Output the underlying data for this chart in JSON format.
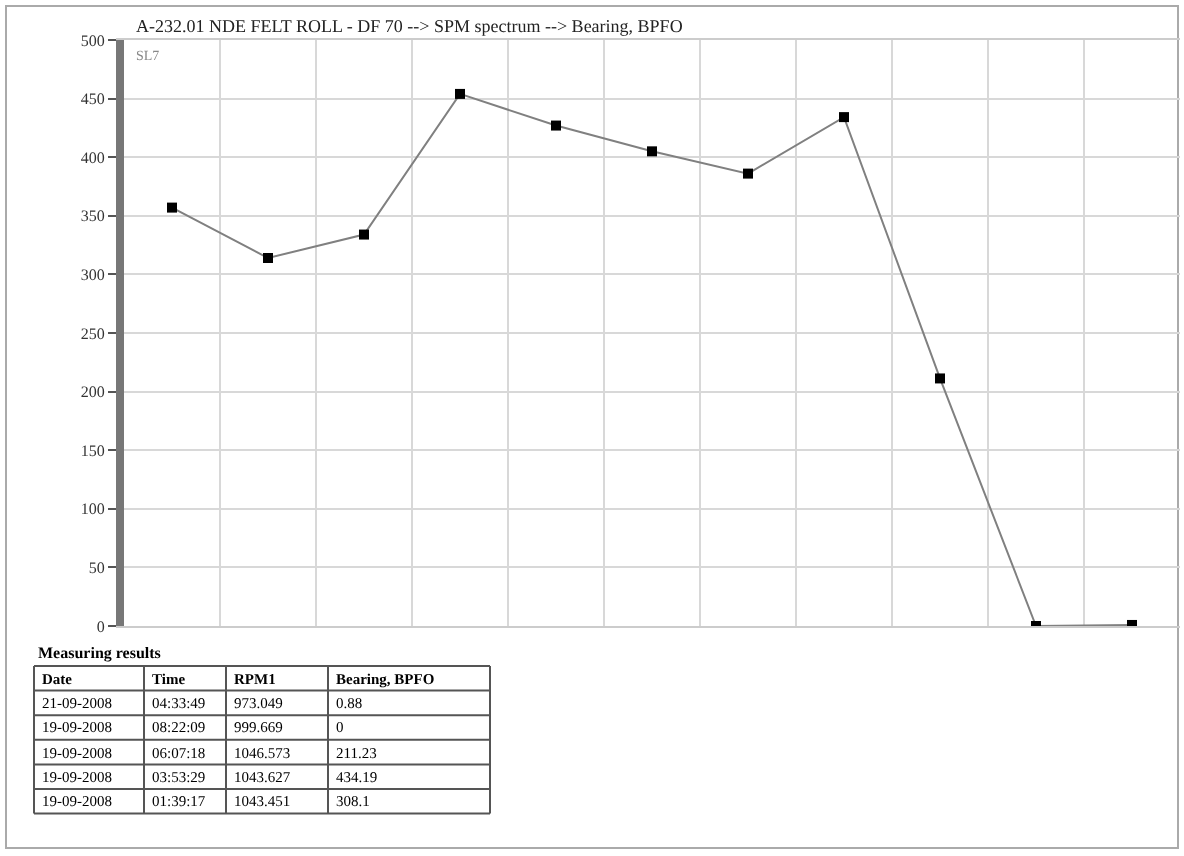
{
  "chart_data": {
    "type": "line",
    "title": "A-232.01 NDE FELT ROLL - DF 70 --> SPM spectrum --> Bearing, BPFO",
    "categories": [
      null,
      null,
      null,
      null,
      null,
      null,
      null,
      null,
      null,
      null,
      null
    ],
    "values": [
      357,
      314,
      334,
      454,
      427,
      405,
      386,
      434.19,
      211.23,
      0,
      0.88
    ],
    "color": "#808080",
    "marker": "square",
    "ylim": [
      0,
      500
    ],
    "yticks": [
      0,
      50,
      100,
      150,
      200,
      250,
      300,
      350,
      400,
      450,
      500
    ],
    "grid": true,
    "tick_labels": "y",
    "annotations": [
      "SL7",
      "Measuring results",
      "Date",
      "Time",
      "RPM1",
      "Bearing, BPFO",
      "21-09-2008",
      "04:33:49",
      "973.049",
      "0.88",
      "19-09-2008",
      "08:22:09",
      "999.669",
      "0",
      "19-09-2008",
      "06:07:18",
      "1046.573",
      "211.23",
      "19-09-2008",
      "03:53:29",
      "1043.627",
      "434.19",
      "19-09-2008",
      "01:39:17",
      "1043.451",
      "308.1"
    ]
  }
}
